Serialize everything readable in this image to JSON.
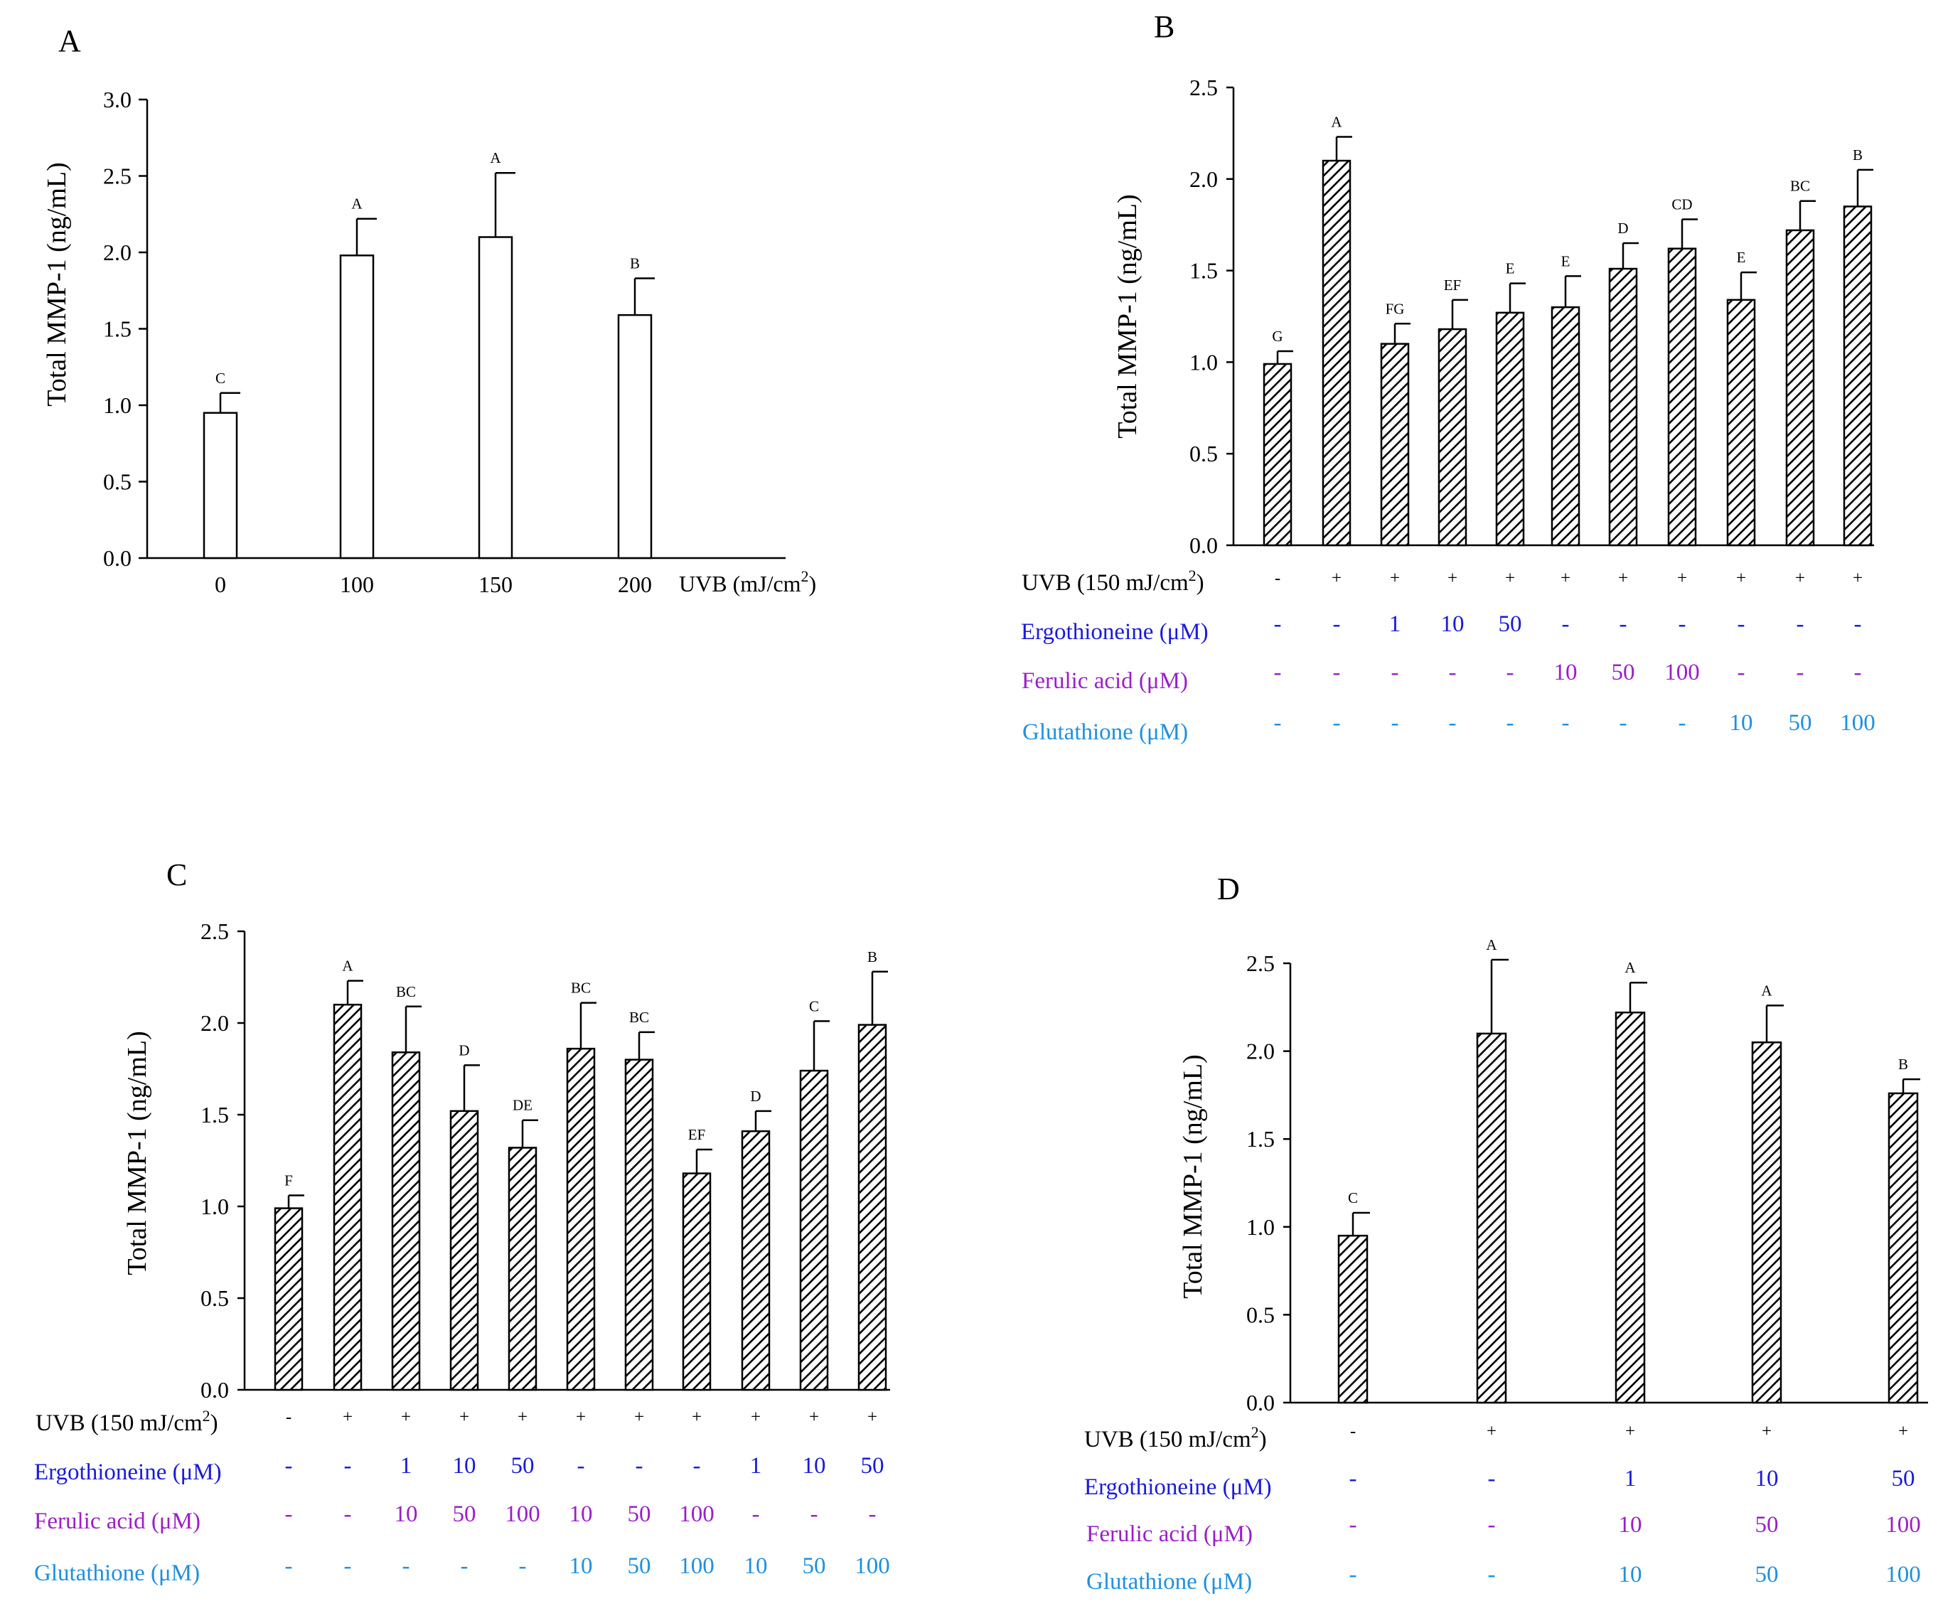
{
  "colors": {
    "black": "#000000",
    "ergothioneine": "#1a1adb",
    "ferulic_acid": "#9b1fc7",
    "glutathione": "#1e90e0"
  },
  "chart_data": [
    {
      "panel": "A",
      "type": "bar",
      "fill": "white",
      "ylabel": "Total MMP-1 (ng/mL)",
      "xlabel": "UVB (mJ/cm2)",
      "xlabel_main": "UVB (mJ/cm",
      "xlabel_sup": "2",
      "xlabel_end": ")",
      "ylim": [
        0,
        3.0
      ],
      "yticks": [
        "0.0",
        "0.5",
        "1.0",
        "1.5",
        "2.0",
        "2.5",
        "3.0"
      ],
      "categories": [
        "0",
        "100",
        "150",
        "200"
      ],
      "values": [
        0.95,
        1.98,
        2.1,
        1.59
      ],
      "errors": [
        0.13,
        0.24,
        0.42,
        0.24
      ],
      "significance": [
        "C",
        "A",
        "A",
        "B"
      ]
    },
    {
      "panel": "B",
      "type": "bar",
      "fill": "hatched",
      "ylabel": "Total MMP-1 (ng/mL)",
      "ylim": [
        0,
        2.5
      ],
      "yticks": [
        "0.0",
        "0.5",
        "1.0",
        "1.5",
        "2.0",
        "2.5"
      ],
      "values": [
        0.99,
        2.1,
        1.1,
        1.18,
        1.27,
        1.3,
        1.51,
        1.62,
        1.34,
        1.72,
        1.85
      ],
      "errors": [
        0.07,
        0.13,
        0.11,
        0.16,
        0.16,
        0.17,
        0.14,
        0.16,
        0.15,
        0.16,
        0.2
      ],
      "significance": [
        "G",
        "A",
        "FG",
        "EF",
        "E",
        "E",
        "D",
        "CD",
        "E",
        "BC",
        "B"
      ],
      "rows": [
        {
          "label": "UVB (150 mJ/cm2)",
          "label_main": "UVB (150 mJ/cm",
          "label_sup": "2",
          "label_end": ")",
          "color": "black",
          "values": [
            "-",
            "+",
            "+",
            "+",
            "+",
            "+",
            "+",
            "+",
            "+",
            "+",
            "+"
          ]
        },
        {
          "label": "Ergothioneine (μM)",
          "color": "ergothioneine",
          "values": [
            "-",
            "-",
            "1",
            "10",
            "50",
            "-",
            "-",
            "-",
            "-",
            "-",
            "-"
          ]
        },
        {
          "label": "Ferulic acid (μM)",
          "color": "ferulic_acid",
          "values": [
            "-",
            "-",
            "-",
            "-",
            "-",
            "10",
            "50",
            "100",
            "-",
            "-",
            "-"
          ]
        },
        {
          "label": "Glutathione (μM)",
          "color": "glutathione",
          "values": [
            "-",
            "-",
            "-",
            "-",
            "-",
            "-",
            "-",
            "-",
            "10",
            "50",
            "100"
          ]
        }
      ]
    },
    {
      "panel": "C",
      "type": "bar",
      "fill": "hatched",
      "ylabel": "Total MMP-1 (ng/mL)",
      "ylim": [
        0,
        2.5
      ],
      "yticks": [
        "0.0",
        "0.5",
        "1.0",
        "1.5",
        "2.0",
        "2.5"
      ],
      "values": [
        0.99,
        2.1,
        1.84,
        1.52,
        1.32,
        1.86,
        1.8,
        1.18,
        1.41,
        1.74,
        1.99
      ],
      "errors": [
        0.07,
        0.13,
        0.25,
        0.25,
        0.15,
        0.25,
        0.15,
        0.13,
        0.11,
        0.27,
        0.29
      ],
      "significance": [
        "F",
        "A",
        "BC",
        "D",
        "DE",
        "BC",
        "BC",
        "EF",
        "D",
        "C",
        "B"
      ],
      "rows": [
        {
          "label": "UVB (150 mJ/cm2)",
          "label_main": "UVB (150 mJ/cm",
          "label_sup": "2",
          "label_end": ")",
          "color": "black",
          "values": [
            "-",
            "+",
            "+",
            "+",
            "+",
            "+",
            "+",
            "+",
            "+",
            "+",
            "+"
          ]
        },
        {
          "label": "Ergothioneine (μM)",
          "color": "ergothioneine",
          "values": [
            "-",
            "-",
            "1",
            "10",
            "50",
            "-",
            "-",
            "-",
            "1",
            "10",
            "50"
          ]
        },
        {
          "label": "Ferulic acid (μM)",
          "color": "ferulic_acid",
          "values": [
            "-",
            "-",
            "10",
            "50",
            "100",
            "10",
            "50",
            "100",
            "-",
            "-",
            "-"
          ]
        },
        {
          "label": "Glutathione (μM)",
          "color": "glutathione",
          "values": [
            "-",
            "-",
            "-",
            "-",
            "-",
            "10",
            "50",
            "100",
            "10",
            "50",
            "100"
          ]
        }
      ]
    },
    {
      "panel": "D",
      "type": "bar",
      "fill": "hatched",
      "ylabel": "Total MMP-1 (ng/mL)",
      "ylim": [
        0,
        2.5
      ],
      "yticks": [
        "0.0",
        "0.5",
        "1.0",
        "1.5",
        "2.0",
        "2.5"
      ],
      "values": [
        0.95,
        2.1,
        2.22,
        2.05,
        1.76
      ],
      "errors": [
        0.13,
        0.42,
        0.17,
        0.21,
        0.08
      ],
      "significance": [
        "C",
        "A",
        "A",
        "A",
        "B"
      ],
      "rows": [
        {
          "label": "UVB (150 mJ/cm2)",
          "label_main": "UVB (150 mJ/cm",
          "label_sup": "2",
          "label_end": ")",
          "color": "black",
          "values": [
            "-",
            "+",
            "+",
            "+",
            "+"
          ]
        },
        {
          "label": "Ergothioneine (μM)",
          "color": "ergothioneine",
          "values": [
            "-",
            "-",
            "1",
            "10",
            "50"
          ]
        },
        {
          "label": "Ferulic acid (μM)",
          "color": "ferulic_acid",
          "values": [
            "-",
            "-",
            "10",
            "50",
            "100"
          ]
        },
        {
          "label": "Glutathione (μM)",
          "color": "glutathione",
          "values": [
            "-",
            "-",
            "10",
            "50",
            "100"
          ]
        }
      ]
    }
  ]
}
